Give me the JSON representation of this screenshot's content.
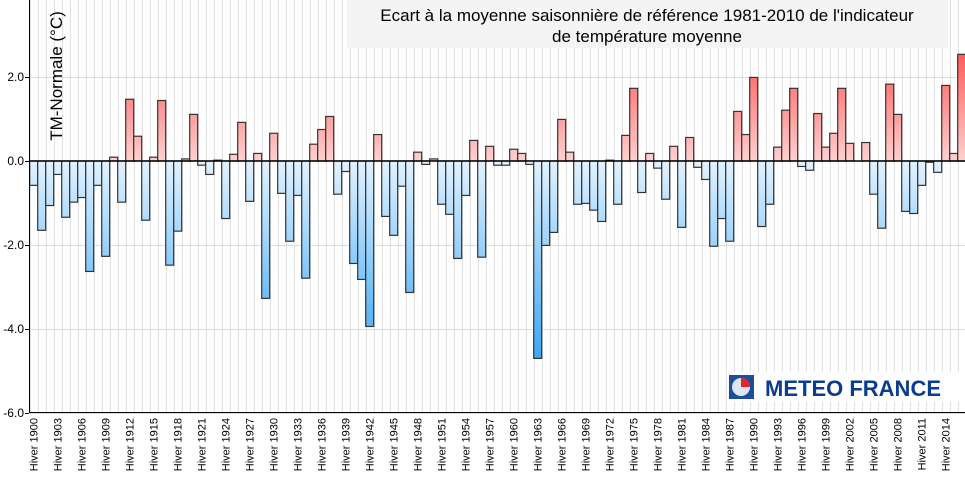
{
  "chart_data": {
    "type": "bar",
    "title": [
      "Ecart à la moyenne saisonnière de référence 1981-2010 de l'indicateur",
      "de température moyenne"
    ],
    "ylabel": "TM-Normale (°C)",
    "xlabel": "",
    "ylim": [
      -6.0,
      3.8
    ],
    "yticks": [
      "2.0",
      "0.0",
      "-2.0",
      "-4.0",
      "-6.0"
    ],
    "ytick_values": [
      2,
      0,
      -2,
      -4,
      -6
    ],
    "grid": true,
    "label_prefix": "Hiver",
    "label_every": 3,
    "start_year": 1900,
    "categories": [
      "Hiver 1900",
      "Hiver 1901",
      "Hiver 1902",
      "Hiver 1903",
      "Hiver 1904",
      "Hiver 1905",
      "Hiver 1906",
      "Hiver 1907",
      "Hiver 1908",
      "Hiver 1909",
      "Hiver 1910",
      "Hiver 1911",
      "Hiver 1912",
      "Hiver 1913",
      "Hiver 1914",
      "Hiver 1915",
      "Hiver 1916",
      "Hiver 1917",
      "Hiver 1918",
      "Hiver 1919",
      "Hiver 1920",
      "Hiver 1921",
      "Hiver 1922",
      "Hiver 1923",
      "Hiver 1924",
      "Hiver 1925",
      "Hiver 1926",
      "Hiver 1927",
      "Hiver 1928",
      "Hiver 1929",
      "Hiver 1930",
      "Hiver 1931",
      "Hiver 1932",
      "Hiver 1933",
      "Hiver 1934",
      "Hiver 1935",
      "Hiver 1936",
      "Hiver 1937",
      "Hiver 1938",
      "Hiver 1939",
      "Hiver 1940",
      "Hiver 1941",
      "Hiver 1942",
      "Hiver 1943",
      "Hiver 1944",
      "Hiver 1945",
      "Hiver 1946",
      "Hiver 1947",
      "Hiver 1948",
      "Hiver 1949",
      "Hiver 1950",
      "Hiver 1951",
      "Hiver 1952",
      "Hiver 1953",
      "Hiver 1954",
      "Hiver 1955",
      "Hiver 1956",
      "Hiver 1957",
      "Hiver 1958",
      "Hiver 1959",
      "Hiver 1960",
      "Hiver 1961",
      "Hiver 1962",
      "Hiver 1963",
      "Hiver 1964",
      "Hiver 1965",
      "Hiver 1966",
      "Hiver 1967",
      "Hiver 1968",
      "Hiver 1969",
      "Hiver 1970",
      "Hiver 1971",
      "Hiver 1972",
      "Hiver 1973",
      "Hiver 1974",
      "Hiver 1975",
      "Hiver 1976",
      "Hiver 1977",
      "Hiver 1978",
      "Hiver 1979",
      "Hiver 1980",
      "Hiver 1981",
      "Hiver 1982",
      "Hiver 1983",
      "Hiver 1984",
      "Hiver 1985",
      "Hiver 1986",
      "Hiver 1987",
      "Hiver 1988",
      "Hiver 1989",
      "Hiver 1990",
      "Hiver 1991",
      "Hiver 1992",
      "Hiver 1993",
      "Hiver 1994",
      "Hiver 1995",
      "Hiver 1996",
      "Hiver 1997",
      "Hiver 1998",
      "Hiver 1999",
      "Hiver 2000",
      "Hiver 2001",
      "Hiver 2002",
      "Hiver 2003",
      "Hiver 2004",
      "Hiver 2005",
      "Hiver 2006",
      "Hiver 2007",
      "Hiver 2008",
      "Hiver 2009",
      "Hiver 2010",
      "Hiver 2011",
      "Hiver 2012",
      "Hiver 2013",
      "Hiver 2014",
      "Hiver 2015",
      "Hiver 2016"
    ],
    "values": [
      -0.58,
      -1.65,
      -1.06,
      -0.32,
      -1.34,
      -0.98,
      -0.87,
      -2.63,
      -0.58,
      -2.27,
      0.09,
      -0.98,
      1.47,
      0.59,
      -1.41,
      0.09,
      1.44,
      -2.48,
      -1.67,
      0.05,
      1.11,
      -0.1,
      -0.32,
      0.02,
      -1.37,
      0.16,
      0.92,
      -0.96,
      0.18,
      -3.27,
      0.66,
      -0.77,
      -1.91,
      -0.82,
      -2.79,
      0.4,
      0.75,
      1.06,
      -0.79,
      -0.25,
      -2.44,
      -2.82,
      -3.94,
      0.63,
      -1.32,
      -1.77,
      -0.6,
      -3.13,
      0.21,
      -0.08,
      0.05,
      -1.03,
      -1.27,
      -2.32,
      -0.82,
      0.49,
      -2.29,
      0.35,
      -0.1,
      -0.1,
      0.28,
      0.18,
      -0.08,
      -4.7,
      -2.01,
      -1.7,
      0.99,
      0.21,
      -1.03,
      -1.01,
      -1.17,
      -1.44,
      0.02,
      -1.03,
      0.61,
      1.73,
      -0.75,
      0.18,
      -0.17,
      -0.91,
      0.35,
      -1.58,
      0.56,
      -0.15,
      -0.44,
      -2.03,
      -1.37,
      -1.91,
      1.18,
      0.63,
      1.99,
      -1.56,
      -1.03,
      0.33,
      1.21,
      1.73,
      -0.13,
      -0.22,
      1.13,
      0.33,
      0.66,
      1.73,
      0.42,
      0.0,
      0.44,
      -0.79,
      -1.6,
      1.83,
      1.11,
      -1.2,
      -1.25,
      -0.58,
      -0.03,
      -0.27,
      1.8,
      0.18,
      2.54
    ],
    "colors": {
      "positive_light": "#ffd0d0",
      "positive_dark": "#ff5a5a",
      "negative_light": "#e2f2ff",
      "negative_dark": "#3aa6f5",
      "outline": "#333333"
    }
  },
  "logo": {
    "text": "METEO FRANCE"
  }
}
